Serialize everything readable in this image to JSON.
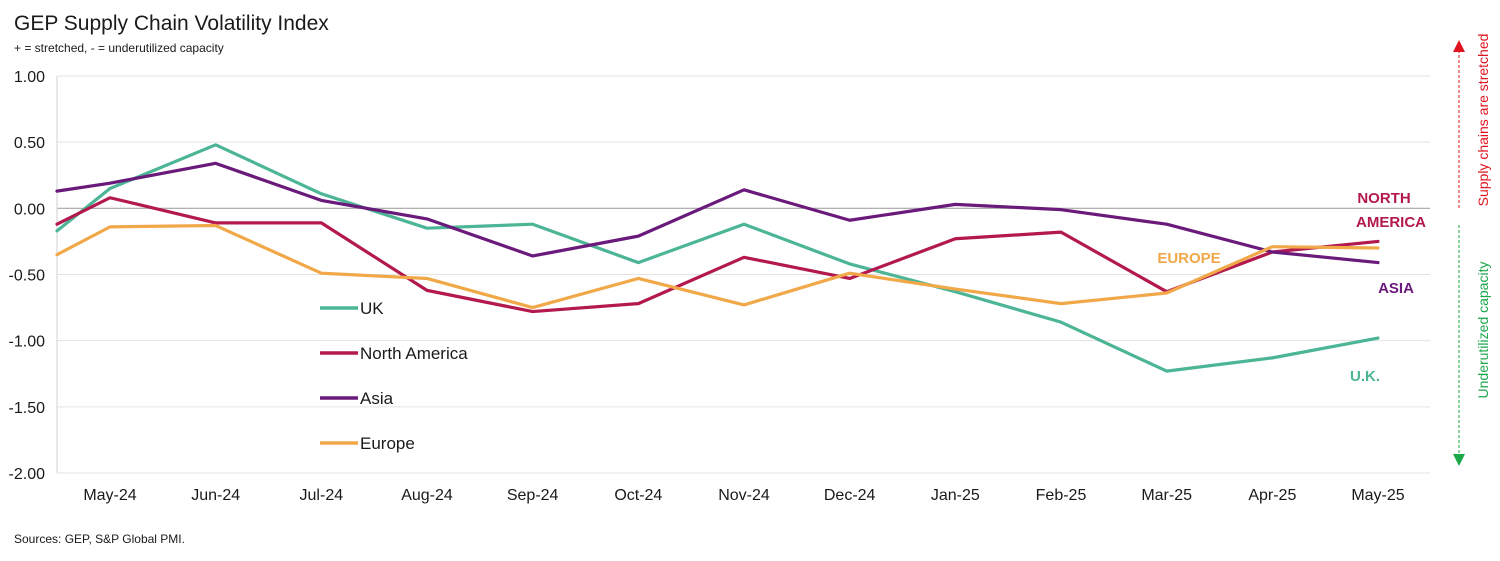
{
  "title": "GEP Supply Chain Volatility Index",
  "subtitle": "+ = stretched, - = underutilized capacity",
  "source": "Sources: GEP, S&P Global PMI.",
  "side_annotations": {
    "up": {
      "text": "Supply chains are stretched",
      "color": "#e0141e"
    },
    "down": {
      "text": "Underutilized capacity",
      "color": "#1aa74a"
    }
  },
  "chart_data": {
    "type": "line",
    "title": "GEP Supply Chain Volatility Index",
    "subtitle": "+ = stretched, - = underutilized capacity",
    "ylim": [
      -2.0,
      1.0
    ],
    "yticks": [
      "1.00",
      "0.50",
      "0.00",
      "-0.50",
      "-1.00",
      "-1.50",
      "-2.00"
    ],
    "ytick_values": [
      1.0,
      0.5,
      0.0,
      -0.5,
      -1.0,
      -1.5,
      -2.0
    ],
    "x": [
      "May-24",
      "Jun-24",
      "Jul-24",
      "Aug-24",
      "Sep-24",
      "Oct-24",
      "Nov-24",
      "Dec-24",
      "Jan-25",
      "Feb-25",
      "Mar-25",
      "Apr-25",
      "May-25"
    ],
    "grid": "horizontal",
    "legend_position": "center-left",
    "series": [
      {
        "name": "UK",
        "color": "#4cb596",
        "end_label": "U.K.",
        "start": -0.17,
        "values": [
          0.15,
          0.48,
          0.11,
          -0.15,
          -0.12,
          -0.41,
          -0.12,
          -0.42,
          -0.63,
          -0.86,
          -1.23,
          -1.13,
          -0.98
        ]
      },
      {
        "name": "North America",
        "color": "#b3184e",
        "end_label": "NORTH AMERICA",
        "start": -0.12,
        "values": [
          0.08,
          -0.11,
          -0.11,
          -0.62,
          -0.78,
          -0.72,
          -0.37,
          -0.53,
          -0.23,
          -0.18,
          -0.63,
          -0.33,
          -0.25
        ]
      },
      {
        "name": "Asia",
        "color": "#6a1a7a",
        "end_label": "ASIA",
        "start": 0.13,
        "values": [
          0.19,
          0.34,
          0.06,
          -0.08,
          -0.36,
          -0.21,
          0.14,
          -0.09,
          0.03,
          -0.01,
          -0.12,
          -0.33,
          -0.41
        ]
      },
      {
        "name": "Europe",
        "color": "#f0a848",
        "end_label": "EUROPE",
        "start": -0.35,
        "values": [
          -0.14,
          -0.13,
          -0.49,
          -0.53,
          -0.75,
          -0.53,
          -0.73,
          -0.49,
          -0.61,
          -0.72,
          -0.64,
          -0.29,
          -0.3
        ]
      }
    ]
  }
}
